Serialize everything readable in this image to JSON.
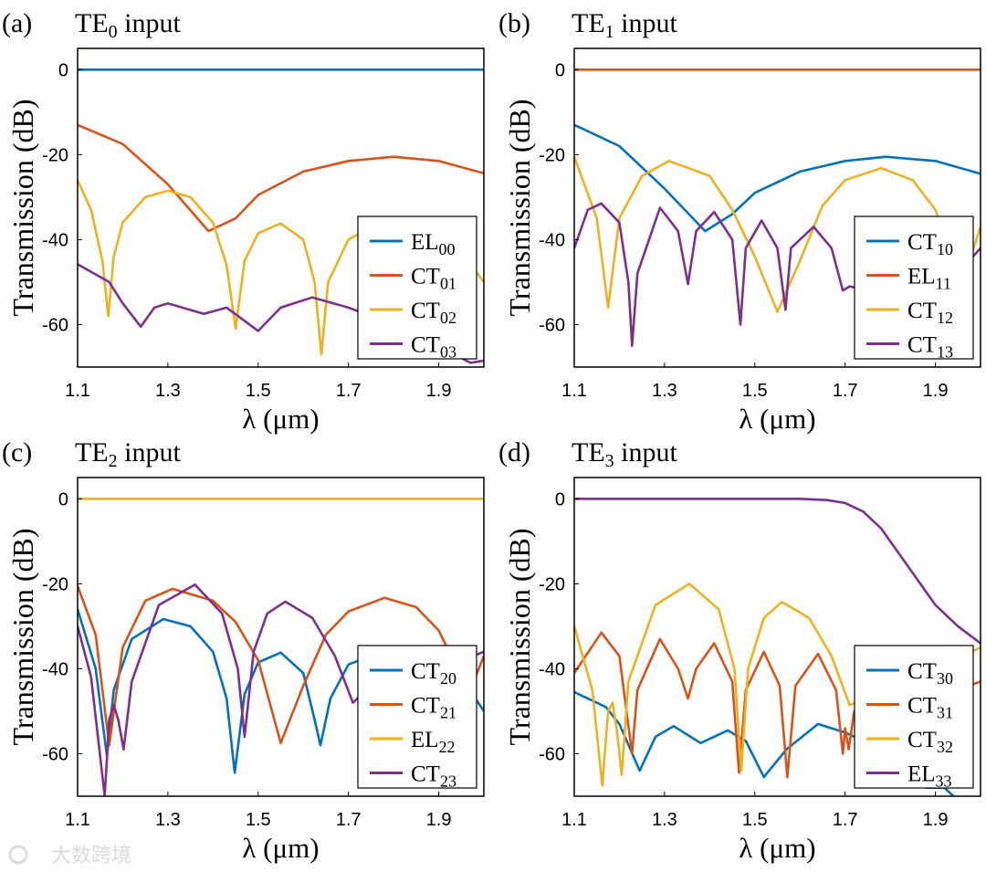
{
  "colors": {
    "blue": "#0072BD",
    "orange": "#D95319",
    "yellow": "#EDB120",
    "purple": "#7E2F8E"
  },
  "watermark": "大数跨境",
  "chart_data": [
    {
      "type": "line",
      "panel": "(a)",
      "title_main": "TE",
      "title_sub": "0",
      "title_rest": " input",
      "xlabel": "λ (μm)",
      "ylabel": "Transmission (dB)",
      "xlim": [
        1.1,
        2.0
      ],
      "ylim": [
        -70,
        5
      ],
      "xticks": [
        "1.1",
        "1.3",
        "1.5",
        "1.7",
        "1.9"
      ],
      "yticks": [
        "0",
        "-20",
        "-40",
        "-60"
      ],
      "legend_position": "bottom-right",
      "series": [
        {
          "main": "EL",
          "sub": "00",
          "color": "blue",
          "x": [
            1.1,
            2.0
          ],
          "y": [
            0,
            0
          ]
        },
        {
          "main": "CT",
          "sub": "01",
          "color": "orange",
          "x": [
            1.1,
            1.2,
            1.3,
            1.39,
            1.45,
            1.5,
            1.6,
            1.7,
            1.8,
            1.9,
            2.0
          ],
          "y": [
            -13,
            -17.5,
            -27,
            -38,
            -35,
            -29.5,
            -24,
            -21.5,
            -20.5,
            -21.5,
            -24.4
          ]
        },
        {
          "main": "CT",
          "sub": "02",
          "color": "yellow",
          "x": [
            1.1,
            1.13,
            1.155,
            1.168,
            1.18,
            1.2,
            1.25,
            1.3,
            1.35,
            1.4,
            1.43,
            1.45,
            1.47,
            1.5,
            1.55,
            1.6,
            1.625,
            1.64,
            1.655,
            1.7,
            1.75,
            1.8,
            1.9,
            1.95,
            2.0
          ],
          "y": [
            -26,
            -33,
            -45,
            -58,
            -44,
            -36,
            -30,
            -28.5,
            -30,
            -36,
            -46,
            -61,
            -45,
            -38.5,
            -36.2,
            -40,
            -50,
            -67,
            -50,
            -40,
            -37,
            -36,
            -38,
            -43,
            -50
          ]
        },
        {
          "main": "CT",
          "sub": "03",
          "color": "purple",
          "x": [
            1.1,
            1.17,
            1.2,
            1.24,
            1.27,
            1.3,
            1.38,
            1.43,
            1.5,
            1.55,
            1.62,
            1.7,
            1.8,
            1.9,
            1.97,
            2.0
          ],
          "y": [
            -45.8,
            -50,
            -55,
            -60.5,
            -56,
            -55,
            -57.5,
            -56,
            -61.5,
            -56,
            -53.6,
            -56,
            -60,
            -65,
            -69,
            -68.5
          ]
        }
      ]
    },
    {
      "type": "line",
      "panel": "(b)",
      "title_main": "TE",
      "title_sub": "1",
      "title_rest": " input",
      "xlabel": "λ (μm)",
      "ylabel": "Transmission (dB)",
      "xlim": [
        1.1,
        2.0
      ],
      "ylim": [
        -70,
        5
      ],
      "xticks": [
        "1.1",
        "1.3",
        "1.5",
        "1.7",
        "1.9"
      ],
      "yticks": [
        "0",
        "-20",
        "-40",
        "-60"
      ],
      "legend_position": "bottom-right",
      "series": [
        {
          "main": "CT",
          "sub": "10",
          "color": "blue",
          "x": [
            1.1,
            1.2,
            1.3,
            1.39,
            1.45,
            1.5,
            1.6,
            1.7,
            1.79,
            1.9,
            2.0
          ],
          "y": [
            -13,
            -18,
            -28,
            -38,
            -34,
            -29,
            -24,
            -21.5,
            -20.5,
            -21.5,
            -24.5
          ]
        },
        {
          "main": "EL",
          "sub": "11",
          "color": "orange",
          "x": [
            1.1,
            2.0
          ],
          "y": [
            0,
            0
          ]
        },
        {
          "main": "CT",
          "sub": "12",
          "color": "yellow",
          "x": [
            1.1,
            1.15,
            1.175,
            1.2,
            1.25,
            1.31,
            1.4,
            1.45,
            1.5,
            1.55,
            1.6,
            1.65,
            1.7,
            1.78,
            1.85,
            1.9,
            1.95,
            1.96,
            2.0
          ],
          "y": [
            -20.5,
            -35,
            -56,
            -35,
            -25,
            -21.5,
            -25,
            -33,
            -44,
            -57,
            -45,
            -32,
            -26,
            -23.2,
            -26,
            -33,
            -47,
            -50,
            -37
          ]
        },
        {
          "main": "CT",
          "sub": "13",
          "color": "purple",
          "x": [
            1.1,
            1.13,
            1.16,
            1.2,
            1.22,
            1.228,
            1.24,
            1.29,
            1.33,
            1.352,
            1.37,
            1.41,
            1.45,
            1.468,
            1.48,
            1.515,
            1.55,
            1.568,
            1.58,
            1.63,
            1.67,
            1.695,
            1.71,
            1.75,
            1.9,
            1.95,
            2.0
          ],
          "y": [
            -42,
            -33,
            -31.5,
            -36,
            -50,
            -65,
            -48,
            -32.5,
            -38,
            -50.5,
            -38,
            -33.5,
            -40,
            -60,
            -42,
            -35.5,
            -42,
            -56.5,
            -42,
            -37,
            -42,
            -52,
            -51,
            -52,
            -50,
            -48,
            -42
          ]
        }
      ]
    },
    {
      "type": "line",
      "panel": "(c)",
      "title_main": "TE",
      "title_sub": "2",
      "title_rest": " input",
      "xlabel": "λ (μm)",
      "ylabel": "Transmission (dB)",
      "xlim": [
        1.1,
        2.0
      ],
      "ylim": [
        -70,
        5
      ],
      "xticks": [
        "1.1",
        "1.3",
        "1.5",
        "1.7",
        "1.9"
      ],
      "yticks": [
        "0",
        "-20",
        "-40",
        "-60"
      ],
      "legend_position": "bottom-right",
      "series": [
        {
          "main": "CT",
          "sub": "20",
          "color": "blue",
          "x": [
            1.1,
            1.14,
            1.165,
            1.18,
            1.22,
            1.29,
            1.35,
            1.4,
            1.43,
            1.448,
            1.47,
            1.5,
            1.55,
            1.6,
            1.625,
            1.638,
            1.66,
            1.7,
            1.75,
            1.9,
            1.95,
            2.0
          ],
          "y": [
            -26,
            -40,
            -60.5,
            -45,
            -33,
            -28.3,
            -30,
            -36,
            -47,
            -64.5,
            -46,
            -38.5,
            -36.2,
            -41,
            -52,
            -58,
            -47,
            -39,
            -37,
            -38,
            -42,
            -50
          ]
        },
        {
          "main": "CT",
          "sub": "21",
          "color": "orange",
          "x": [
            1.1,
            1.14,
            1.17,
            1.2,
            1.25,
            1.31,
            1.4,
            1.45,
            1.5,
            1.55,
            1.6,
            1.65,
            1.7,
            1.78,
            1.85,
            1.9,
            1.95,
            1.97,
            2.0
          ],
          "y": [
            -20.5,
            -32,
            -58,
            -35,
            -24,
            -21.2,
            -24,
            -29,
            -38,
            -57.5,
            -44,
            -32,
            -26.5,
            -23.3,
            -25.5,
            -31,
            -42,
            -45,
            -37
          ]
        },
        {
          "main": "EL",
          "sub": "22",
          "color": "yellow",
          "x": [
            1.1,
            2.0
          ],
          "y": [
            0,
            0
          ]
        },
        {
          "main": "CT",
          "sub": "23",
          "color": "purple",
          "x": [
            1.1,
            1.13,
            1.16,
            1.17,
            1.18,
            1.19,
            1.202,
            1.22,
            1.28,
            1.36,
            1.42,
            1.455,
            1.47,
            1.49,
            1.52,
            1.56,
            1.62,
            1.67,
            1.71,
            1.73,
            1.9,
            2.0
          ],
          "y": [
            -30,
            -42,
            -70,
            -52,
            -48.5,
            -52,
            -59,
            -43,
            -25,
            -20.2,
            -27,
            -40,
            -56,
            -36,
            -27,
            -24.2,
            -28,
            -37,
            -48,
            -46,
            -40,
            -36
          ]
        }
      ]
    },
    {
      "type": "line",
      "panel": "(d)",
      "title_main": "TE",
      "title_sub": "3",
      "title_rest": " input",
      "xlabel": "λ (μm)",
      "ylabel": "Transmission (dB)",
      "xlim": [
        1.1,
        2.0
      ],
      "ylim": [
        -70,
        5
      ],
      "xticks": [
        "1.1",
        "1.3",
        "1.5",
        "1.7",
        "1.9"
      ],
      "yticks": [
        "0",
        "-20",
        "-40",
        "-60"
      ],
      "legend_position": "bottom-right",
      "series": [
        {
          "main": "CT",
          "sub": "30",
          "color": "blue",
          "x": [
            1.1,
            1.17,
            1.2,
            1.245,
            1.28,
            1.32,
            1.38,
            1.44,
            1.48,
            1.52,
            1.57,
            1.64,
            1.7,
            1.8,
            1.88,
            1.92,
            1.96
          ],
          "y": [
            -45.5,
            -49,
            -53,
            -64,
            -56,
            -53.5,
            -57.5,
            -54.5,
            -57,
            -65.5,
            -59,
            -53,
            -55,
            -60,
            -68,
            -68,
            -72
          ]
        },
        {
          "main": "CT",
          "sub": "31",
          "color": "orange",
          "x": [
            1.1,
            1.16,
            1.2,
            1.228,
            1.24,
            1.29,
            1.33,
            1.352,
            1.37,
            1.41,
            1.45,
            1.465,
            1.48,
            1.52,
            1.555,
            1.572,
            1.59,
            1.64,
            1.68,
            1.695,
            1.7,
            1.708,
            1.72,
            1.8,
            1.9,
            2.0
          ],
          "y": [
            -41,
            -31.5,
            -37,
            -60,
            -45,
            -33,
            -40,
            -47,
            -40,
            -34,
            -43,
            -64.5,
            -45,
            -36,
            -44,
            -65.5,
            -44,
            -36.5,
            -45,
            -60,
            -54,
            -59,
            -50,
            -48,
            -47,
            -43
          ]
        },
        {
          "main": "CT",
          "sub": "32",
          "color": "yellow",
          "x": [
            1.1,
            1.14,
            1.162,
            1.175,
            1.185,
            1.195,
            1.205,
            1.22,
            1.28,
            1.355,
            1.42,
            1.455,
            1.47,
            1.485,
            1.52,
            1.56,
            1.62,
            1.67,
            1.71,
            1.75,
            1.9,
            2.0
          ],
          "y": [
            -30,
            -45,
            -67.5,
            -50,
            -48,
            -55,
            -65,
            -43,
            -25,
            -20,
            -26,
            -40,
            -64,
            -40,
            -28,
            -24.3,
            -28,
            -37,
            -48.5,
            -47,
            -40,
            -35
          ]
        },
        {
          "main": "EL",
          "sub": "33",
          "color": "purple",
          "x": [
            1.1,
            1.6,
            1.66,
            1.7,
            1.74,
            1.78,
            1.82,
            1.86,
            1.9,
            1.95,
            2.0
          ],
          "y": [
            0,
            0,
            -0.3,
            -1,
            -3,
            -7,
            -13,
            -19,
            -25,
            -30,
            -34
          ]
        }
      ]
    }
  ]
}
